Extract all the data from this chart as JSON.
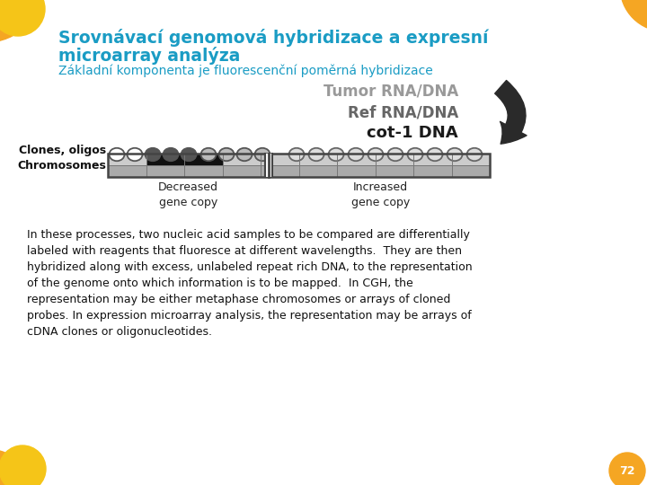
{
  "background_color": "#ffffff",
  "title_line1": "Srovnávací genomová hybridizace a expresní",
  "title_line2": "microarray analýza",
  "subtitle": "Základní komponenta je fluorescenční poměrná hybridizace",
  "title_color": "#1a9cc4",
  "subtitle_color": "#1a9cc4",
  "body_lines": [
    "In these processes, two nucleic acid samples to be compared are differentially",
    "labeled with reagents that fluoresce at different wavelengths.  They are then",
    "hybridized along with excess, unlabeled repeat rich DNA, to the representation",
    "of the genome onto which information is to be mapped.  In CGH, the",
    "representation may be either metaphase chromosomes or arrays of cloned",
    "probes. In expression microarray analysis, the representation may be arrays of",
    "cDNA clones or oligonucleotides."
  ],
  "page_number": "72",
  "orange_color": "#f5a623",
  "yellow_color": "#f5c518",
  "diagram_bg": "#f5f5f5",
  "tumor_color": "#999999",
  "ref_color": "#666666",
  "cot_color": "#1a1a1a",
  "arrow_color": "#2a2a2a",
  "clones_label": "Clones, oligos",
  "chromosomes_label": "Chromosomes",
  "decreased_label": "Decreased\ngene copy",
  "increased_label": "Increased\ngene copy",
  "circle_fills_g1": [
    "white",
    "white",
    "#555555",
    "#555555",
    "#555555",
    "#aaaaaa",
    "#aaaaaa",
    "#aaaaaa",
    "#aaaaaa"
  ],
  "circle_fills_g2": [
    "#dddddd",
    "#dddddd",
    "#dddddd",
    "#dddddd",
    "#dddddd",
    "#dddddd",
    "#dddddd",
    "#dddddd",
    "#dddddd",
    "#dddddd"
  ],
  "chrom_stripes": [
    "#bbbbbb",
    "#1a1a1a",
    "#1a1a1a",
    "#bbbbbb",
    "#bbbbbb",
    "#bbbbbb",
    "#bbbbbb",
    "#bbbbbb",
    "#bbbbbb",
    "#bbbbbb"
  ],
  "chrom_row2_stripes": [
    "#888888",
    "#888888",
    "#888888",
    "#888888",
    "#888888",
    "#888888",
    "#888888",
    "#888888",
    "#888888",
    "#888888"
  ]
}
